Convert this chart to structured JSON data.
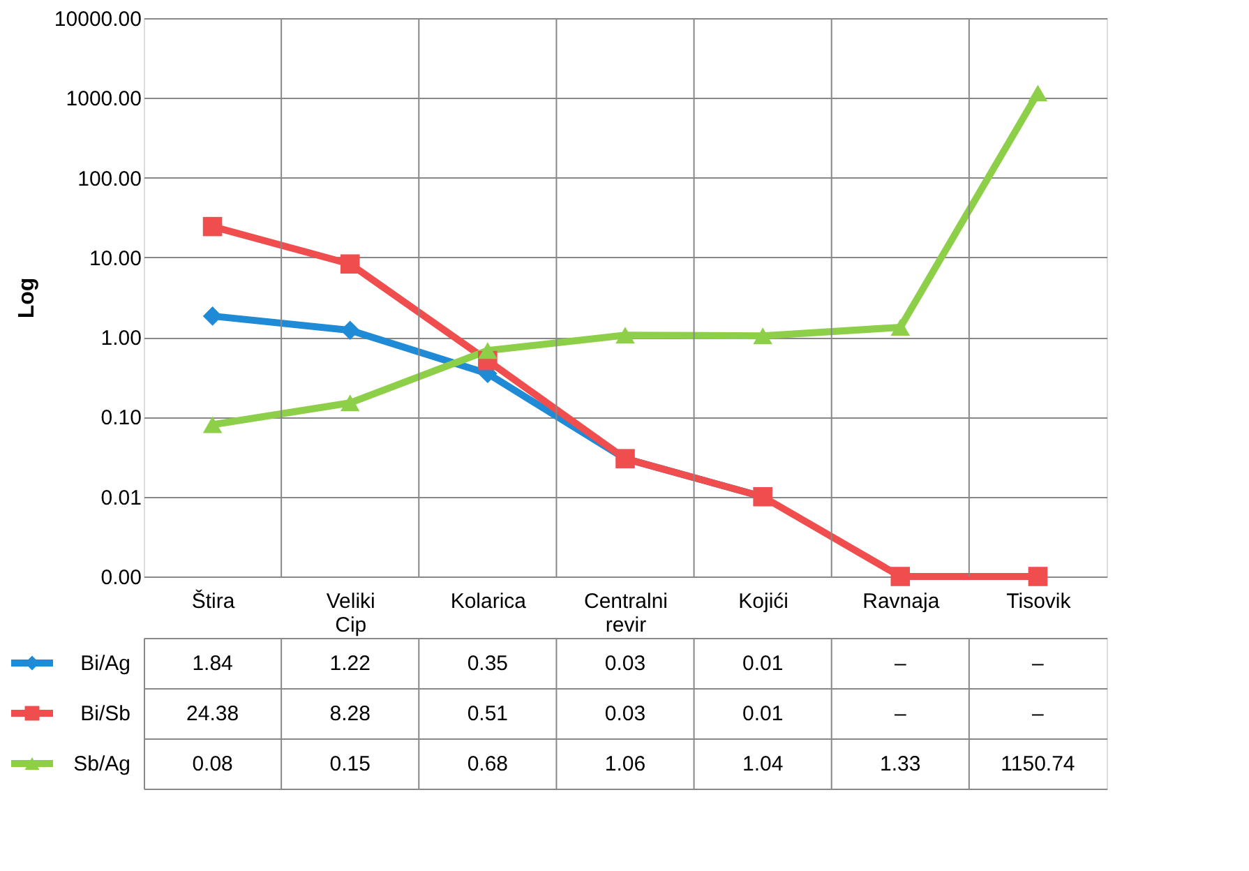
{
  "chart_data": {
    "type": "line",
    "ylabel": "Log",
    "categories": [
      "Štira",
      "Veliki Cip",
      "Kolarica",
      "Centralni revir",
      "Kojići",
      "Ravnaja",
      "Tisovik"
    ],
    "series": [
      {
        "name": "Bi/Ag",
        "color": "#1f8ad6",
        "marker": "diamond",
        "values": [
          1.84,
          1.22,
          0.35,
          0.03,
          0.01,
          null,
          null
        ],
        "value_labels": [
          "1.84",
          "1.22",
          "0.35",
          "0.03",
          "0.01",
          "–",
          "–"
        ]
      },
      {
        "name": "Bi/Sb",
        "color": "#f04e4e",
        "marker": "square",
        "values": [
          24.38,
          8.28,
          0.51,
          0.03,
          0.01,
          0.001,
          0.001
        ],
        "value_labels": [
          "24.38",
          "8.28",
          "0.51",
          "0.03",
          "0.01",
          "–",
          "–"
        ]
      },
      {
        "name": "Sb/Ag",
        "color": "#8ecf4a",
        "marker": "triangle",
        "values": [
          0.08,
          0.15,
          0.68,
          1.06,
          1.04,
          1.33,
          1150.74
        ],
        "value_labels": [
          "0.08",
          "0.15",
          "0.68",
          "1.06",
          "1.04",
          "1.33",
          "1150.74"
        ]
      }
    ],
    "log": true,
    "ylim": [
      0.001,
      10000
    ],
    "yticks": [
      {
        "value": 0.001,
        "label": "0.00"
      },
      {
        "value": 0.01,
        "label": "0.01"
      },
      {
        "value": 0.1,
        "label": "0.10"
      },
      {
        "value": 1,
        "label": "1.00"
      },
      {
        "value": 10,
        "label": "10.00"
      },
      {
        "value": 100,
        "label": "100.00"
      },
      {
        "value": 1000,
        "label": "1000.00"
      },
      {
        "value": 10000,
        "label": "10000.00"
      }
    ],
    "grid": true,
    "legend": "bottom"
  }
}
